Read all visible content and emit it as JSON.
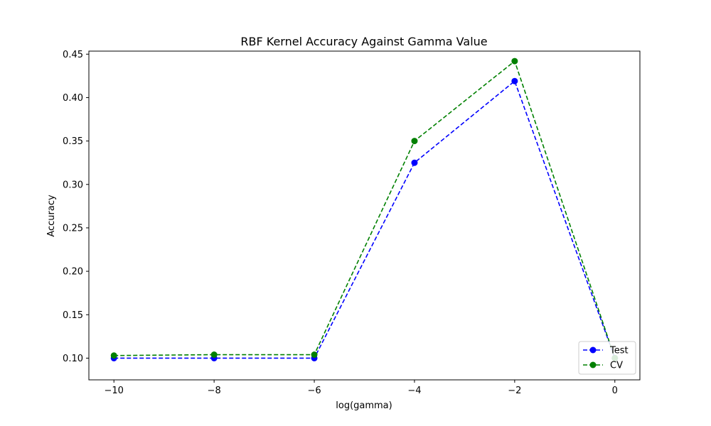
{
  "chart_data": {
    "type": "line",
    "title": "RBF Kernel Accuracy Against Gamma Value",
    "xlabel": "log(gamma)",
    "ylabel": "Accuracy",
    "x": [
      -10,
      -8,
      -6,
      -4,
      -2,
      0
    ],
    "xlim": [
      -10.5,
      0.5
    ],
    "ylim": [
      0.075,
      0.4535
    ],
    "xticks": [
      -10,
      -8,
      -6,
      -4,
      -2,
      0
    ],
    "xtick_labels": [
      "−10",
      "−8",
      "−6",
      "−4",
      "−2",
      "0"
    ],
    "yticks": [
      0.1,
      0.15,
      0.2,
      0.25,
      0.3,
      0.35,
      0.4,
      0.45
    ],
    "ytick_labels": [
      "0.10",
      "0.15",
      "0.20",
      "0.25",
      "0.30",
      "0.35",
      "0.40",
      "0.45"
    ],
    "grid": false,
    "legend_position": "lower-right",
    "series": [
      {
        "name": "Test",
        "color": "#0000ff",
        "linestyle": "dashed",
        "marker": "circle",
        "values": [
          0.1,
          0.1,
          0.1,
          0.325,
          0.419,
          0.1
        ]
      },
      {
        "name": "CV",
        "color": "#008000",
        "linestyle": "dashed",
        "marker": "circle",
        "values": [
          0.103,
          0.104,
          0.104,
          0.35,
          0.442,
          0.1
        ]
      }
    ]
  }
}
